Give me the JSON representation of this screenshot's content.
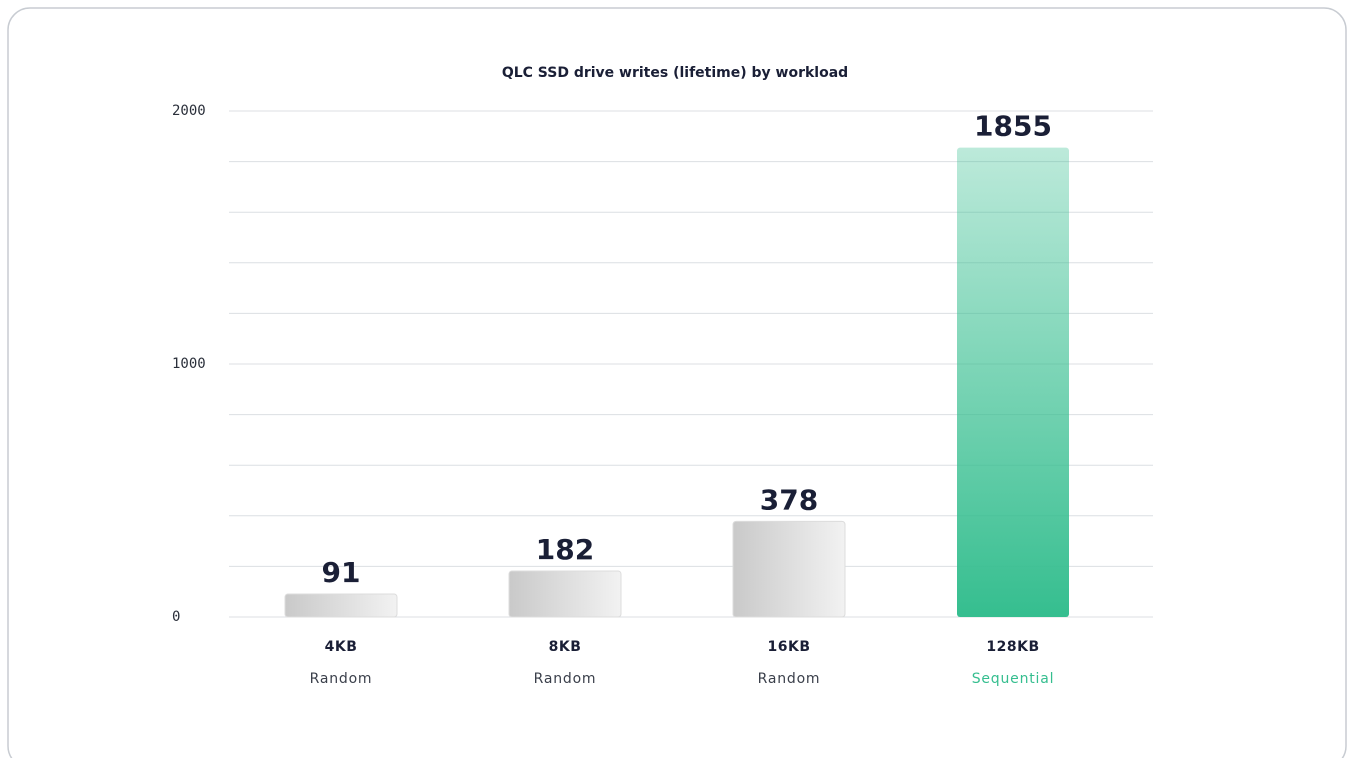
{
  "chart_data": {
    "type": "bar",
    "title": "QLC SSD drive writes (lifetime) by workload",
    "categories": [
      "4KB",
      "8KB",
      "16KB",
      "128KB"
    ],
    "category_subtitles": [
      "Random",
      "Random",
      "Random",
      "Sequential"
    ],
    "values": [
      91,
      182,
      378,
      1855
    ],
    "colors": [
      "#c9c9c9",
      "#c9c9c9",
      "#c9c9c9",
      "#35be8f"
    ],
    "subtitle_colors": [
      "#3a3f4a",
      "#3a3f4a",
      "#3a3f4a",
      "#35be8f"
    ],
    "ylim": [
      0,
      2000
    ],
    "yticks": [
      0,
      1000,
      2000
    ],
    "ygrid": [
      0,
      200,
      400,
      600,
      800,
      1000,
      1200,
      1400,
      1600,
      1800,
      2000
    ]
  }
}
